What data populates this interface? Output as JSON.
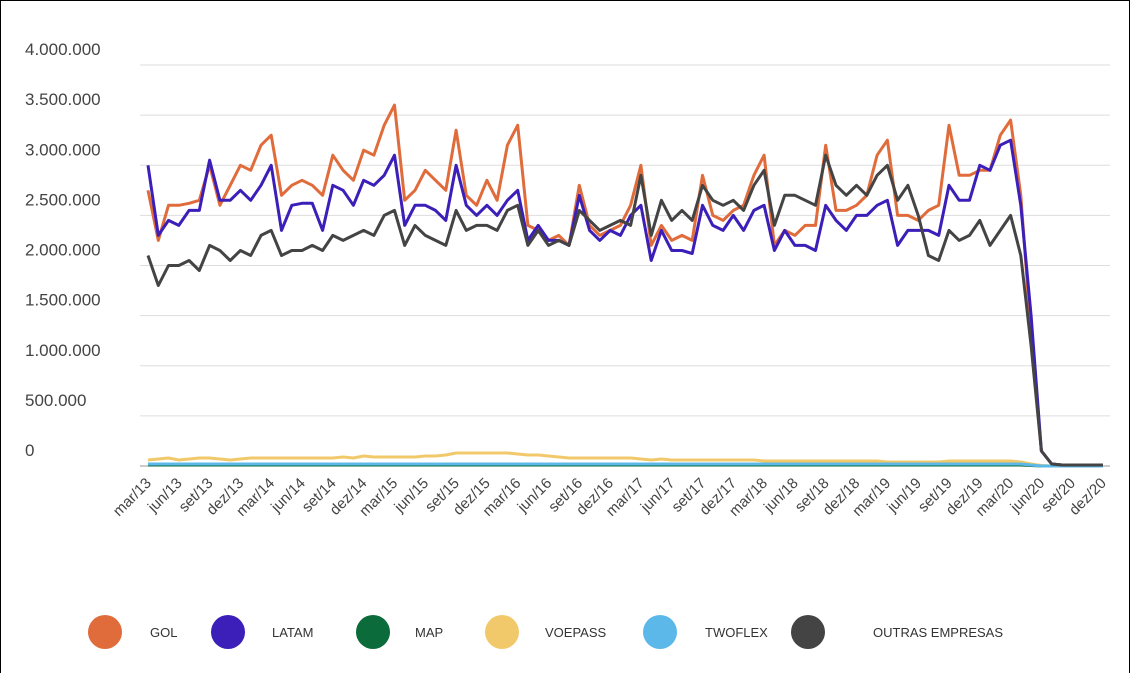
{
  "chart_data": {
    "type": "line",
    "categories": [
      "mar/13",
      null,
      null,
      "jun/13",
      null,
      null,
      "set/13",
      null,
      null,
      "dez/13",
      null,
      null,
      "mar/14",
      null,
      null,
      "jun/14",
      null,
      null,
      "set/14",
      null,
      null,
      "dez/14",
      null,
      null,
      "mar/15",
      null,
      null,
      "jun/15",
      null,
      null,
      "set/15",
      null,
      null,
      "dez/15",
      null,
      null,
      "mar/16",
      null,
      null,
      "jun/16",
      null,
      null,
      "set/16",
      null,
      null,
      "dez/16",
      null,
      null,
      "mar/17",
      null,
      null,
      "jun/17",
      null,
      null,
      "set/17",
      null,
      null,
      "dez/17",
      null,
      null,
      "mar/18",
      null,
      null,
      "jun/18",
      null,
      null,
      "set/18",
      null,
      null,
      "dez/18",
      null,
      null,
      "mar/19",
      null,
      null,
      "jun/19",
      null,
      null,
      "set/19",
      null,
      null,
      "dez/19",
      null,
      null,
      "mar/20",
      null,
      null,
      "jun/20",
      null,
      null,
      "set/20",
      null,
      null,
      "dez/20"
    ],
    "series": [
      {
        "name": "GOL",
        "color": "#e06c3c",
        "values": [
          2750000,
          2250000,
          2600000,
          2600000,
          2620000,
          2650000,
          3000000,
          2600000,
          2800000,
          3000000,
          2950000,
          3200000,
          3300000,
          2700000,
          2800000,
          2850000,
          2800000,
          2700000,
          3100000,
          2950000,
          2850000,
          3150000,
          3100000,
          3400000,
          3600000,
          2650000,
          2750000,
          2950000,
          2850000,
          2750000,
          3350000,
          2700000,
          2600000,
          2850000,
          2650000,
          3200000,
          3400000,
          2400000,
          2350000,
          2250000,
          2300000,
          2200000,
          2800000,
          2400000,
          2300000,
          2350000,
          2400000,
          2600000,
          3000000,
          2200000,
          2400000,
          2250000,
          2300000,
          2250000,
          2900000,
          2500000,
          2450000,
          2550000,
          2600000,
          2900000,
          3100000,
          2200000,
          2350000,
          2300000,
          2400000,
          2400000,
          3200000,
          2550000,
          2550000,
          2600000,
          2700000,
          3100000,
          3250000,
          2500000,
          2500000,
          2450000,
          2550000,
          2600000,
          3400000,
          2900000,
          2900000,
          2950000,
          2950000,
          3300000,
          3450000,
          2700000,
          1300000,
          150000,
          20000,
          10000,
          10000,
          10000,
          10000,
          10000
        ]
      },
      {
        "name": "LATAM",
        "color": "#3b1fb8",
        "values": [
          3000000,
          2300000,
          2450000,
          2400000,
          2550000,
          2550000,
          3050000,
          2650000,
          2650000,
          2750000,
          2650000,
          2800000,
          3000000,
          2350000,
          2600000,
          2620000,
          2620000,
          2350000,
          2800000,
          2750000,
          2600000,
          2850000,
          2800000,
          2900000,
          3100000,
          2400000,
          2600000,
          2600000,
          2550000,
          2450000,
          3000000,
          2600000,
          2500000,
          2600000,
          2500000,
          2650000,
          2750000,
          2250000,
          2400000,
          2250000,
          2250000,
          2200000,
          2700000,
          2350000,
          2250000,
          2350000,
          2300000,
          2500000,
          2600000,
          2050000,
          2350000,
          2150000,
          2150000,
          2120000,
          2600000,
          2400000,
          2350000,
          2500000,
          2350000,
          2550000,
          2600000,
          2150000,
          2350000,
          2200000,
          2200000,
          2150000,
          2600000,
          2450000,
          2350000,
          2500000,
          2500000,
          2600000,
          2650000,
          2200000,
          2350000,
          2350000,
          2350000,
          2300000,
          2800000,
          2650000,
          2650000,
          3000000,
          2950000,
          3200000,
          3250000,
          2600000,
          1500000,
          150000,
          20000,
          10000,
          10000,
          10000,
          10000,
          10000
        ]
      },
      {
        "name": "MAP",
        "color": "#0b6b3a",
        "values": [
          10000,
          10000,
          10000,
          10000,
          10000,
          10000,
          10000,
          10000,
          10000,
          10000,
          10000,
          10000,
          10000,
          10000,
          10000,
          10000,
          10000,
          10000,
          10000,
          10000,
          10000,
          10000,
          10000,
          10000,
          10000,
          10000,
          10000,
          10000,
          10000,
          10000,
          10000,
          10000,
          10000,
          10000,
          10000,
          10000,
          10000,
          10000,
          10000,
          10000,
          10000,
          10000,
          10000,
          10000,
          10000,
          10000,
          10000,
          10000,
          10000,
          10000,
          10000,
          10000,
          10000,
          10000,
          10000,
          10000,
          10000,
          10000,
          10000,
          10000,
          10000,
          10000,
          10000,
          10000,
          10000,
          10000,
          10000,
          10000,
          10000,
          10000,
          10000,
          10000,
          10000,
          10000,
          10000,
          10000,
          10000,
          10000,
          10000,
          10000,
          10000,
          10000,
          10000,
          10000,
          10000,
          10000,
          5000,
          0,
          0,
          0,
          0,
          0,
          0,
          0
        ]
      },
      {
        "name": "VOEPASS",
        "color": "#f2c96a",
        "values": [
          60000,
          70000,
          80000,
          60000,
          70000,
          80000,
          80000,
          70000,
          60000,
          70000,
          80000,
          80000,
          80000,
          80000,
          80000,
          80000,
          80000,
          80000,
          80000,
          90000,
          80000,
          100000,
          90000,
          90000,
          90000,
          90000,
          90000,
          100000,
          100000,
          110000,
          130000,
          130000,
          130000,
          130000,
          130000,
          130000,
          120000,
          110000,
          110000,
          100000,
          90000,
          80000,
          80000,
          80000,
          80000,
          80000,
          80000,
          80000,
          70000,
          60000,
          70000,
          60000,
          60000,
          60000,
          60000,
          60000,
          60000,
          60000,
          60000,
          60000,
          50000,
          50000,
          50000,
          50000,
          50000,
          50000,
          50000,
          50000,
          50000,
          50000,
          50000,
          50000,
          40000,
          40000,
          40000,
          40000,
          40000,
          40000,
          50000,
          50000,
          50000,
          50000,
          50000,
          50000,
          50000,
          40000,
          20000,
          5000,
          0,
          0,
          0,
          0,
          0,
          0
        ]
      },
      {
        "name": "TWOFLEX",
        "color": "#5bb8e8",
        "values": [
          20000,
          20000,
          20000,
          20000,
          20000,
          20000,
          20000,
          20000,
          20000,
          20000,
          20000,
          20000,
          20000,
          20000,
          20000,
          20000,
          20000,
          20000,
          20000,
          20000,
          20000,
          20000,
          20000,
          20000,
          20000,
          20000,
          20000,
          20000,
          20000,
          20000,
          20000,
          20000,
          20000,
          20000,
          20000,
          20000,
          20000,
          20000,
          20000,
          20000,
          20000,
          20000,
          20000,
          20000,
          20000,
          20000,
          20000,
          20000,
          20000,
          20000,
          20000,
          20000,
          20000,
          20000,
          20000,
          20000,
          20000,
          20000,
          20000,
          20000,
          20000,
          20000,
          20000,
          20000,
          20000,
          20000,
          20000,
          20000,
          20000,
          20000,
          20000,
          20000,
          20000,
          20000,
          20000,
          20000,
          20000,
          20000,
          20000,
          20000,
          20000,
          20000,
          20000,
          20000,
          20000,
          20000,
          10000,
          0,
          0,
          0,
          0,
          0,
          0,
          0
        ]
      },
      {
        "name": "OUTRAS EMPRESAS",
        "color": "#444444",
        "values": [
          2100000,
          1800000,
          2000000,
          2000000,
          2050000,
          1950000,
          2200000,
          2150000,
          2050000,
          2150000,
          2100000,
          2300000,
          2350000,
          2100000,
          2150000,
          2150000,
          2200000,
          2150000,
          2300000,
          2250000,
          2300000,
          2350000,
          2300000,
          2500000,
          2550000,
          2200000,
          2400000,
          2300000,
          2250000,
          2200000,
          2550000,
          2350000,
          2400000,
          2400000,
          2350000,
          2550000,
          2600000,
          2200000,
          2350000,
          2200000,
          2250000,
          2200000,
          2550000,
          2450000,
          2350000,
          2400000,
          2450000,
          2400000,
          2900000,
          2300000,
          2650000,
          2450000,
          2550000,
          2450000,
          2800000,
          2650000,
          2600000,
          2650000,
          2550000,
          2800000,
          2950000,
          2400000,
          2700000,
          2700000,
          2650000,
          2600000,
          3100000,
          2800000,
          2700000,
          2800000,
          2700000,
          2900000,
          3000000,
          2650000,
          2800000,
          2500000,
          2100000,
          2050000,
          2350000,
          2250000,
          2300000,
          2450000,
          2200000,
          2350000,
          2500000,
          2100000,
          1200000,
          150000,
          20000,
          10000,
          10000,
          10000,
          10000,
          10000
        ]
      }
    ],
    "ylim": [
      0,
      4000000
    ],
    "yticks": [
      0,
      {
        "value": 500000,
        "label": "500.000"
      },
      {
        "value": 1000000,
        "label": "1.000.000"
      },
      {
        "value": 1500000,
        "label": "1.500.000"
      },
      {
        "value": 2000000,
        "label": "2.000.000"
      },
      {
        "value": 2500000,
        "label": "2.500.000"
      },
      {
        "value": 3000000,
        "label": "3.000.000"
      },
      {
        "value": 3500000,
        "label": "3.500.000"
      },
      {
        "value": 4000000,
        "label": "4.000.000"
      }
    ],
    "grid": true,
    "legend": "bottom"
  }
}
